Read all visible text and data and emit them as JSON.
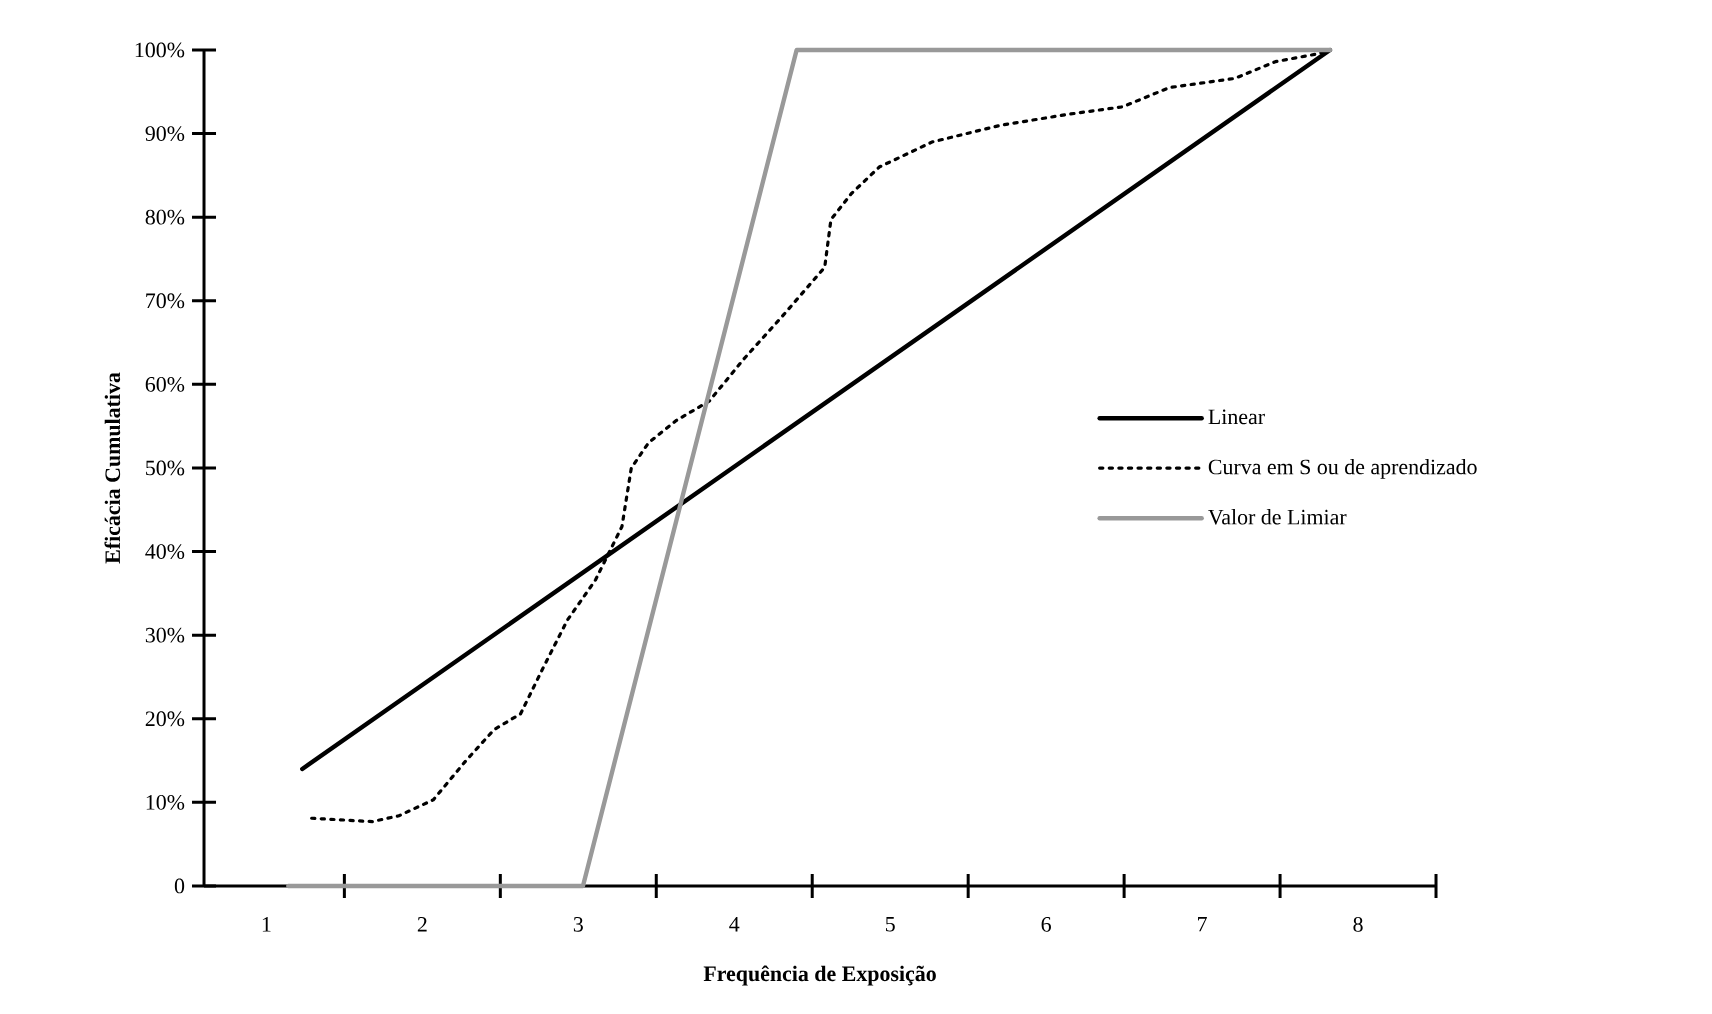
{
  "chart_data": {
    "type": "line",
    "xlabel": "Frequência de Exposição",
    "ylabel": "Eficácia Cumulativa",
    "xlim": [
      0.6,
      8.5
    ],
    "ylim": [
      0,
      100
    ],
    "xticks": [
      {
        "value": 1,
        "label": "1"
      },
      {
        "value": 1.5,
        "label": null
      },
      {
        "value": 2,
        "label": "2"
      },
      {
        "value": 2.5,
        "label": null
      },
      {
        "value": 3,
        "label": "3"
      },
      {
        "value": 3.5,
        "label": null
      },
      {
        "value": 4,
        "label": "4"
      },
      {
        "value": 4.5,
        "label": null
      },
      {
        "value": 5,
        "label": "5"
      },
      {
        "value": 5.5,
        "label": null
      },
      {
        "value": 6,
        "label": "6"
      },
      {
        "value": 6.5,
        "label": null
      },
      {
        "value": 7,
        "label": "7"
      },
      {
        "value": 7.5,
        "label": null
      },
      {
        "value": 8,
        "label": "8"
      },
      {
        "value": 8.5,
        "label": null
      }
    ],
    "yticks": [
      0,
      {
        "value": 10,
        "label": "10%"
      },
      {
        "value": 20,
        "label": "20%"
      },
      {
        "value": 30,
        "label": "30%"
      },
      {
        "value": 40,
        "label": "40%"
      },
      {
        "value": 50,
        "label": "50%"
      },
      {
        "value": 60,
        "label": "60%"
      },
      {
        "value": 70,
        "label": "70%"
      },
      {
        "value": 80,
        "label": "80%"
      },
      {
        "value": 90,
        "label": "90%"
      },
      {
        "value": 100,
        "label": "100%"
      }
    ],
    "legend": "right",
    "grid": false,
    "series": [
      {
        "name": "Linear",
        "color": "#000000",
        "line_style": "solid",
        "x": [
          1.23,
          7.82
        ],
        "values": [
          14,
          100
        ]
      },
      {
        "name": "Curva em S ou de aprendizado",
        "color": "#000000",
        "line_style": "dotted",
        "x": [
          1.29,
          1.68,
          1.85,
          2.07,
          2.28,
          2.46,
          2.63,
          2.78,
          2.93,
          3.11,
          3.28,
          3.34,
          3.45,
          3.63,
          3.84,
          4.06,
          4.32,
          4.58,
          4.62,
          4.75,
          4.93,
          5.27,
          5.71,
          6.14,
          6.49,
          6.79,
          7.21,
          7.47,
          7.73,
          7.82
        ],
        "values": [
          8.1,
          7.7,
          8.4,
          10.3,
          15,
          18.7,
          20.6,
          26.3,
          31.8,
          36.6,
          43,
          50,
          53,
          55.7,
          58,
          63,
          68.4,
          74,
          79.7,
          82.8,
          86,
          89,
          91,
          92.3,
          93.2,
          95.5,
          96.6,
          98.6,
          99.5,
          100
        ]
      },
      {
        "name": "Valor de Limiar",
        "color": "#999999",
        "line_style": "solid",
        "x": [
          1.14,
          3.03,
          4.4,
          7.82
        ],
        "values": [
          0,
          0,
          100,
          100
        ]
      }
    ]
  }
}
